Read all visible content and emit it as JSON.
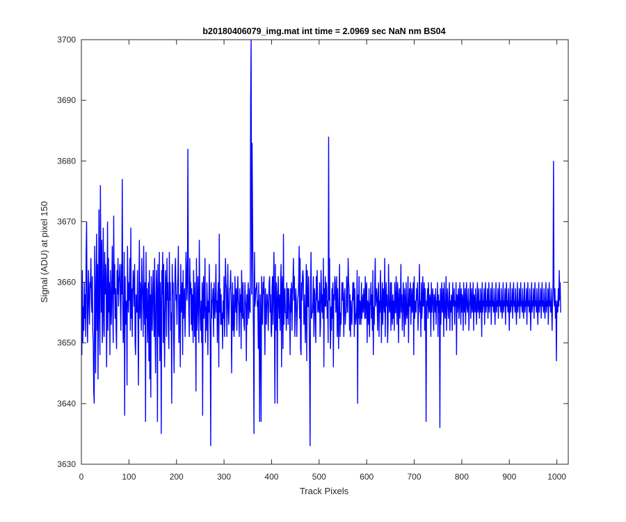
{
  "chart_data": {
    "type": "line",
    "title": "b20180406079_img.mat int time = 2.0969 sec  NaN nm BS04",
    "xlabel": "Track Pixels",
    "ylabel": "Signal (ADU) at pixel 150",
    "xlim": [
      0,
      1024
    ],
    "ylim": [
      3630,
      3700
    ],
    "xticks": [
      0,
      100,
      200,
      300,
      400,
      500,
      600,
      700,
      800,
      900,
      1000
    ],
    "yticks": [
      3630,
      3640,
      3650,
      3660,
      3670,
      3680,
      3690,
      3700
    ],
    "grid": false,
    "legend": "none",
    "series": [
      {
        "color": "#0000ff",
        "noise_description": "Noisy signal fluctuating around ~3657 ADU for pixels 1–1024",
        "x_start": 1,
        "x_step": 1,
        "values": [
          3648,
          3662,
          3650,
          3656,
          3652,
          3660,
          3654,
          3658,
          3651,
          3665,
          3670,
          3655,
          3650,
          3658,
          3662,
          3656,
          3653,
          3660,
          3659,
          3664,
          3657,
          3655,
          3661,
          3652,
          3650,
          3642,
          3640,
          3666,
          3658,
          3645,
          3660,
          3668,
          3652,
          3663,
          3644,
          3657,
          3672,
          3654,
          3648,
          3676,
          3663,
          3655,
          3667,
          3650,
          3652,
          3669,
          3656,
          3651,
          3665,
          3658,
          3663,
          3661,
          3646,
          3656,
          3670,
          3652,
          3664,
          3655,
          3660,
          3648,
          3662,
          3657,
          3653,
          3660,
          3666,
          3655,
          3650,
          3671,
          3658,
          3663,
          3654,
          3659,
          3652,
          3649,
          3662,
          3658,
          3664,
          3656,
          3660,
          3661,
          3663,
          3657,
          3652,
          3663,
          3658,
          3677,
          3657,
          3650,
          3654,
          3665,
          3638,
          3661,
          3653,
          3656,
          3657,
          3643,
          3666,
          3658,
          3655,
          3660,
          3657,
          3664,
          3652,
          3669,
          3654,
          3659,
          3651,
          3658,
          3662,
          3660,
          3656,
          3663,
          3650,
          3648,
          3658,
          3657,
          3655,
          3662,
          3653,
          3643,
          3659,
          3667,
          3654,
          3660,
          3657,
          3652,
          3664,
          3660,
          3657,
          3651,
          3666,
          3658,
          3653,
          3660,
          3637,
          3665,
          3654,
          3659,
          3650,
          3655,
          3660,
          3647,
          3662,
          3644,
          3658,
          3641,
          3661,
          3656,
          3652,
          3659,
          3662,
          3655,
          3651,
          3664,
          3653,
          3645,
          3656,
          3662,
          3658,
          3637,
          3663,
          3654,
          3651,
          3665,
          3647,
          3660,
          3655,
          3635,
          3662,
          3658,
          3665,
          3650,
          3663,
          3654,
          3646,
          3655,
          3662,
          3659,
          3651,
          3664,
          3657,
          3660,
          3652,
          3649,
          3665,
          3657,
          3660,
          3652,
          3655,
          3640,
          3663,
          3658,
          3660,
          3651,
          3645,
          3656,
          3662,
          3664,
          3657,
          3658,
          3653,
          3659,
          3661,
          3666,
          3650,
          3654,
          3658,
          3646,
          3663,
          3655,
          3657,
          3660,
          3648,
          3662,
          3654,
          3657,
          3659,
          3651,
          3656,
          3665,
          3662,
          3657,
          3660,
          3682,
          3661,
          3655,
          3651,
          3664,
          3658,
          3660,
          3653,
          3659,
          3652,
          3658,
          3650,
          3662,
          3657,
          3651,
          3660,
          3654,
          3642,
          3664,
          3652,
          3655,
          3661,
          3656,
          3650,
          3667,
          3658,
          3654,
          3652,
          3657,
          3650,
          3660,
          3638,
          3658,
          3661,
          3654,
          3657,
          3664,
          3650,
          3656,
          3652,
          3660,
          3656,
          3648,
          3657,
          3655,
          3663,
          3655,
          3651,
          3633,
          3660,
          3654,
          3657,
          3657,
          3659,
          3651,
          3660,
          3656,
          3654,
          3658,
          3663,
          3655,
          3657,
          3650,
          3658,
          3660,
          3646,
          3668,
          3655,
          3659,
          3653,
          3658,
          3653,
          3655,
          3649,
          3657,
          3654,
          3661,
          3651,
          3655,
          3664,
          3660,
          3659,
          3651,
          3656,
          3663,
          3656,
          3653,
          3656,
          3659,
          3659,
          3662,
          3657,
          3645,
          3655,
          3660,
          3652,
          3658,
          3651,
          3653,
          3661,
          3657,
          3655,
          3659,
          3652,
          3658,
          3661,
          3657,
          3656,
          3651,
          3659,
          3655,
          3658,
          3649,
          3662,
          3657,
          3654,
          3660,
          3655,
          3653,
          3652,
          3660,
          3657,
          3656,
          3647,
          3658,
          3653,
          3658,
          3660,
          3654,
          3656,
          3659,
          3655,
          3690,
          3700,
          3658,
          3683,
          3671,
          3659,
          3651,
          3635,
          3665,
          3656,
          3657,
          3659,
          3659,
          3660,
          3656,
          3657,
          3649,
          3660,
          3651,
          3637,
          3658,
          3655,
          3637,
          3661,
          3656,
          3653,
          3660,
          3658,
          3661,
          3655,
          3648,
          3659,
          3654,
          3653,
          3658,
          3658,
          3656,
          3652,
          3657,
          3660,
          3661,
          3655,
          3658,
          3652,
          3651,
          3659,
          3661,
          3653,
          3660,
          3665,
          3654,
          3640,
          3663,
          3652,
          3660,
          3657,
          3640,
          3658,
          3661,
          3656,
          3654,
          3658,
          3652,
          3660,
          3663,
          3646,
          3659,
          3661,
          3649,
          3668,
          3653,
          3657,
          3659,
          3655,
          3655,
          3652,
          3660,
          3654,
          3659,
          3653,
          3659,
          3657,
          3655,
          3648,
          3659,
          3655,
          3660,
          3652,
          3658,
          3660,
          3664,
          3657,
          3661,
          3651,
          3656,
          3659,
          3657,
          3651,
          3655,
          3657,
          3658,
          3660,
          3666,
          3654,
          3664,
          3649,
          3648,
          3660,
          3657,
          3661,
          3662,
          3660,
          3653,
          3658,
          3655,
          3650,
          3657,
          3663,
          3647,
          3662,
          3656,
          3656,
          3661,
          3654,
          3647,
          3633,
          3659,
          3665,
          3654,
          3655,
          3655,
          3657,
          3661,
          3651,
          3659,
          3658,
          3653,
          3650,
          3661,
          3657,
          3662,
          3655,
          3657,
          3656,
          3655,
          3660,
          3651,
          3653,
          3662,
          3659,
          3655,
          3658,
          3654,
          3664,
          3646,
          3659,
          3656,
          3661,
          3656,
          3660,
          3659,
          3654,
          3657,
          3650,
          3684,
          3657,
          3664,
          3653,
          3649,
          3656,
          3652,
          3659,
          3654,
          3660,
          3646,
          3658,
          3657,
          3661,
          3660,
          3655,
          3656,
          3661,
          3651,
          3659,
          3654,
          3649,
          3657,
          3663,
          3651,
          3655,
          3653,
          3656,
          3660,
          3657,
          3660,
          3656,
          3651,
          3658,
          3659,
          3653,
          3655,
          3655,
          3661,
          3657,
          3655,
          3664,
          3660,
          3659,
          3652,
          3658,
          3651,
          3657,
          3655,
          3653,
          3657,
          3660,
          3657,
          3660,
          3651,
          3659,
          3655,
          3653,
          3654,
          3656,
          3662,
          3640,
          3658,
          3654,
          3661,
          3653,
          3657,
          3656,
          3653,
          3660,
          3654,
          3656,
          3658,
          3655,
          3659,
          3657,
          3654,
          3661,
          3654,
          3659,
          3660,
          3650,
          3657,
          3656,
          3653,
          3659,
          3651,
          3656,
          3657,
          3660,
          3654,
          3658,
          3652,
          3662,
          3648,
          3656,
          3653,
          3660,
          3664,
          3656,
          3657,
          3659,
          3657,
          3652,
          3658,
          3660,
          3651,
          3657,
          3655,
          3662,
          3658,
          3650,
          3656,
          3660,
          3653,
          3659,
          3657,
          3655,
          3664,
          3651,
          3657,
          3660,
          3656,
          3658,
          3650,
          3653,
          3663,
          3657,
          3655,
          3656,
          3660,
          3652,
          3660,
          3655,
          3653,
          3658,
          3654,
          3657,
          3652,
          3660,
          3655,
          3655,
          3661,
          3657,
          3653,
          3660,
          3658,
          3650,
          3657,
          3659,
          3654,
          3657,
          3663,
          3655,
          3658,
          3652,
          3655,
          3660,
          3657,
          3651,
          3659,
          3656,
          3653,
          3660,
          3655,
          3654,
          3657,
          3661,
          3650,
          3656,
          3659,
          3656,
          3660,
          3653,
          3657,
          3659,
          3655,
          3657,
          3660,
          3648,
          3661,
          3654,
          3656,
          3657,
          3655,
          3659,
          3657,
          3660,
          3652,
          3655,
          3657,
          3663,
          3655,
          3657,
          3651,
          3660,
          3654,
          3656,
          3661,
          3656,
          3657,
          3660,
          3652,
          3659,
          3655,
          3637,
          3657,
          3656,
          3659,
          3654,
          3660,
          3656,
          3655,
          3658,
          3657,
          3651,
          3660,
          3655,
          3657,
          3659,
          3656,
          3652,
          3658,
          3657,
          3655,
          3659,
          3653,
          3657,
          3656,
          3660,
          3651,
          3658,
          3655,
          3657,
          3636,
          3659,
          3653,
          3657,
          3660,
          3655,
          3656,
          3659,
          3651,
          3660,
          3657,
          3654,
          3656,
          3661,
          3652,
          3657,
          3659,
          3656,
          3654,
          3657,
          3660,
          3652,
          3657,
          3655,
          3658,
          3657,
          3652,
          3660,
          3656,
          3657,
          3659,
          3653,
          3657,
          3656,
          3660,
          3648,
          3658,
          3655,
          3657,
          3659,
          3654,
          3656,
          3660,
          3657,
          3653,
          3659,
          3655,
          3658,
          3657,
          3652,
          3660,
          3656,
          3655,
          3659,
          3653,
          3657,
          3660,
          3656,
          3655,
          3657,
          3659,
          3652,
          3656,
          3657,
          3660,
          3654,
          3657,
          3659,
          3655,
          3656,
          3660,
          3652,
          3658,
          3657,
          3655,
          3659,
          3656,
          3653,
          3657,
          3660,
          3655,
          3656,
          3659,
          3654,
          3657,
          3655,
          3659,
          3657,
          3651,
          3660,
          3655,
          3657,
          3656,
          3659,
          3653,
          3657,
          3660,
          3655,
          3657,
          3656,
          3659,
          3654,
          3657,
          3660,
          3655,
          3657,
          3656,
          3659,
          3653,
          3657,
          3660,
          3656,
          3657,
          3655,
          3659,
          3656,
          3653,
          3657,
          3660,
          3655,
          3657,
          3656,
          3659,
          3654,
          3657,
          3660,
          3656,
          3657,
          3655,
          3659,
          3656,
          3654,
          3657,
          3660,
          3655,
          3657,
          3656,
          3659,
          3653,
          3657,
          3660,
          3656,
          3657,
          3655,
          3659,
          3656,
          3652,
          3657,
          3660,
          3655,
          3657,
          3656,
          3659,
          3654,
          3657,
          3660,
          3656,
          3657,
          3655,
          3659,
          3656,
          3653,
          3657,
          3660,
          3655,
          3657,
          3656,
          3659,
          3654,
          3657,
          3660,
          3656,
          3657,
          3655,
          3659,
          3656,
          3654,
          3657,
          3660,
          3655,
          3657,
          3656,
          3659,
          3653,
          3657,
          3660,
          3656,
          3657,
          3655,
          3659,
          3656,
          3652,
          3657,
          3660,
          3655,
          3657,
          3656,
          3659,
          3654,
          3657,
          3660,
          3656,
          3657,
          3655,
          3659,
          3656,
          3653,
          3657,
          3660,
          3655,
          3657,
          3656,
          3659,
          3654,
          3657,
          3660,
          3656,
          3657,
          3655,
          3659,
          3656,
          3654,
          3657,
          3660,
          3655,
          3657,
          3656,
          3659,
          3653,
          3657,
          3660,
          3656,
          3657,
          3655,
          3659,
          3656,
          3652,
          3657,
          3660,
          3680,
          3657,
          3656,
          3659,
          3654,
          3657,
          3647,
          3656,
          3657,
          3655,
          3659,
          3656,
          3662,
          3657,
          3660,
          3655
        ]
      }
    ]
  }
}
